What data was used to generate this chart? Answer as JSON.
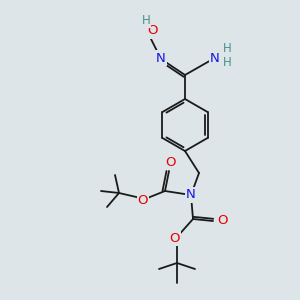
{
  "bg_color": "#dde5e8",
  "bond_color": "#1a1a1a",
  "atom_colors": {
    "N": "#1414e6",
    "O": "#e60000",
    "H": "#4a9090",
    "C": "#1a1a1a"
  },
  "figsize": [
    3.0,
    3.0
  ],
  "dpi": 100
}
